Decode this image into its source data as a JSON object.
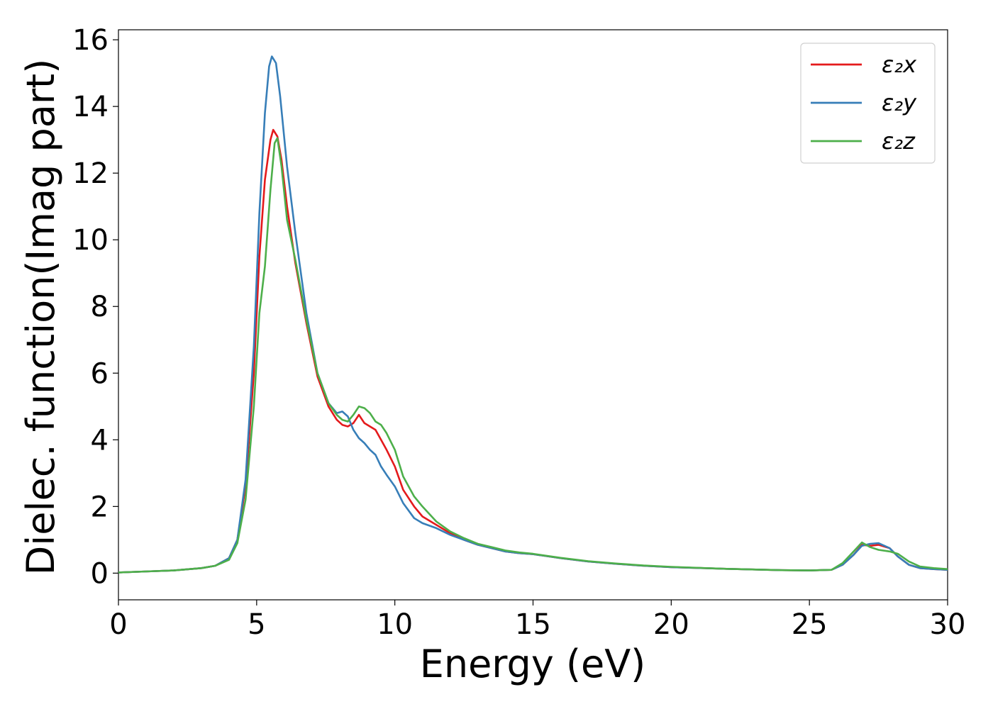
{
  "chart_data": {
    "type": "line",
    "title": "",
    "xlabel": "Energy (eV)",
    "ylabel": "Dielec. function(Imag part)",
    "xlim": [
      0,
      30
    ],
    "ylim": [
      -0.8,
      16.3
    ],
    "xticks": [
      0,
      5,
      10,
      15,
      20,
      25,
      30
    ],
    "yticks": [
      0,
      2,
      4,
      6,
      8,
      10,
      12,
      14,
      16
    ],
    "grid": false,
    "legend": {
      "position": "top-right"
    },
    "series": [
      {
        "name": "ε₂x",
        "color": "#e41a1c",
        "x": [
          0,
          1,
          2,
          3,
          3.5,
          4,
          4.3,
          4.6,
          4.9,
          5.1,
          5.3,
          5.5,
          5.6,
          5.75,
          5.9,
          6.1,
          6.4,
          6.8,
          7.2,
          7.6,
          7.9,
          8.1,
          8.3,
          8.5,
          8.7,
          8.9,
          9.1,
          9.3,
          9.5,
          9.7,
          10.0,
          10.3,
          10.7,
          11.0,
          11.5,
          12.0,
          12.5,
          13.0,
          13.5,
          14.0,
          14.5,
          15.0,
          16.0,
          17.0,
          18.0,
          19.0,
          20.0,
          22.0,
          24.0,
          25.0,
          25.8,
          26.2,
          26.6,
          26.9,
          27.2,
          27.5,
          27.9,
          28.2,
          28.6,
          29.0,
          29.5,
          30.0
        ],
        "values": [
          0.02,
          0.05,
          0.08,
          0.15,
          0.22,
          0.45,
          1.0,
          2.6,
          6.0,
          9.5,
          11.8,
          13.0,
          13.3,
          13.1,
          12.4,
          11.0,
          9.3,
          7.5,
          5.9,
          5.0,
          4.6,
          4.45,
          4.4,
          4.5,
          4.75,
          4.5,
          4.4,
          4.3,
          4.0,
          3.7,
          3.2,
          2.5,
          2.0,
          1.7,
          1.45,
          1.2,
          1.0,
          0.85,
          0.75,
          0.65,
          0.6,
          0.57,
          0.45,
          0.35,
          0.28,
          0.22,
          0.18,
          0.13,
          0.09,
          0.08,
          0.1,
          0.25,
          0.55,
          0.85,
          0.82,
          0.85,
          0.75,
          0.5,
          0.25,
          0.15,
          0.12,
          0.1
        ]
      },
      {
        "name": "ε₂y",
        "color": "#377eb8",
        "x": [
          0,
          1,
          2,
          3,
          3.5,
          4,
          4.3,
          4.6,
          4.9,
          5.1,
          5.3,
          5.45,
          5.55,
          5.7,
          5.85,
          6.1,
          6.4,
          6.8,
          7.2,
          7.6,
          7.9,
          8.1,
          8.3,
          8.5,
          8.7,
          8.9,
          9.1,
          9.3,
          9.5,
          9.7,
          10.0,
          10.3,
          10.7,
          11.0,
          11.5,
          12.0,
          12.5,
          13.0,
          13.5,
          14.0,
          14.5,
          15.0,
          16.0,
          17.0,
          18.0,
          19.0,
          20.0,
          22.0,
          24.0,
          25.0,
          25.8,
          26.2,
          26.6,
          26.9,
          27.2,
          27.5,
          27.9,
          28.2,
          28.6,
          29.0,
          29.5,
          30.0
        ],
        "values": [
          0.02,
          0.05,
          0.08,
          0.15,
          0.22,
          0.45,
          1.0,
          2.8,
          6.8,
          10.8,
          13.8,
          15.2,
          15.5,
          15.3,
          14.3,
          12.2,
          10.2,
          7.8,
          6.0,
          5.1,
          4.8,
          4.85,
          4.7,
          4.3,
          4.05,
          3.9,
          3.7,
          3.55,
          3.2,
          2.95,
          2.6,
          2.1,
          1.65,
          1.5,
          1.35,
          1.15,
          1.0,
          0.85,
          0.75,
          0.65,
          0.6,
          0.57,
          0.45,
          0.35,
          0.28,
          0.22,
          0.18,
          0.13,
          0.09,
          0.08,
          0.1,
          0.25,
          0.55,
          0.82,
          0.88,
          0.9,
          0.75,
          0.5,
          0.25,
          0.15,
          0.12,
          0.1
        ]
      },
      {
        "name": "ε₂z",
        "color": "#4daf4a",
        "x": [
          0,
          1,
          2,
          3,
          3.5,
          4,
          4.3,
          4.6,
          4.9,
          5.1,
          5.3,
          5.5,
          5.65,
          5.75,
          5.9,
          6.1,
          6.4,
          6.8,
          7.2,
          7.6,
          7.9,
          8.1,
          8.3,
          8.5,
          8.7,
          8.9,
          9.1,
          9.3,
          9.5,
          9.7,
          10.0,
          10.3,
          10.7,
          11.0,
          11.5,
          12.0,
          12.5,
          13.0,
          13.5,
          14.0,
          14.5,
          15.0,
          16.0,
          17.0,
          18.0,
          19.0,
          20.0,
          22.0,
          24.0,
          25.0,
          25.8,
          26.2,
          26.6,
          26.9,
          27.2,
          27.5,
          27.9,
          28.2,
          28.6,
          29.0,
          29.5,
          30.0
        ],
        "values": [
          0.02,
          0.05,
          0.08,
          0.15,
          0.22,
          0.4,
          0.9,
          2.2,
          5.0,
          7.8,
          9.2,
          11.5,
          12.9,
          13.05,
          12.2,
          10.6,
          9.4,
          7.6,
          6.0,
          5.1,
          4.75,
          4.6,
          4.55,
          4.75,
          5.0,
          4.95,
          4.8,
          4.55,
          4.45,
          4.2,
          3.7,
          2.9,
          2.3,
          2.0,
          1.55,
          1.25,
          1.05,
          0.88,
          0.78,
          0.68,
          0.62,
          0.58,
          0.46,
          0.36,
          0.29,
          0.23,
          0.19,
          0.13,
          0.09,
          0.08,
          0.1,
          0.3,
          0.65,
          0.92,
          0.78,
          0.7,
          0.65,
          0.58,
          0.35,
          0.2,
          0.15,
          0.12
        ]
      }
    ]
  }
}
